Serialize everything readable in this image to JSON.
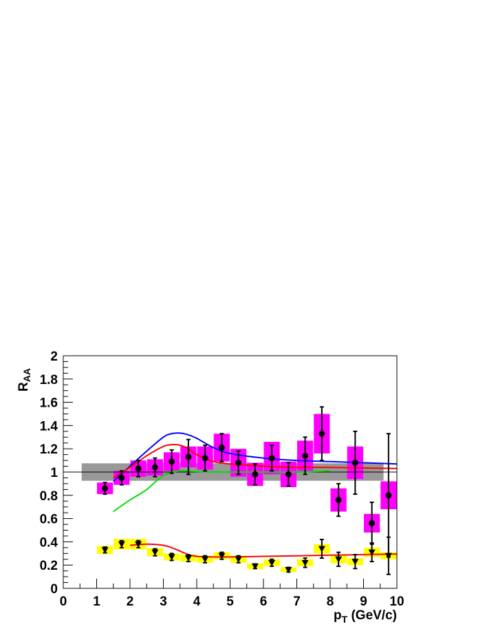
{
  "chart_data": {
    "type": "scatter",
    "title": "",
    "xlabel": "p",
    "xlabel_sub": "T",
    "xlabel_unit": " (GeV/c)",
    "ylabel": "R",
    "ylabel_sub": "AA",
    "xlim": [
      0,
      10
    ],
    "ylim": [
      0,
      2
    ],
    "x_ticks": [
      "0",
      "1",
      "2",
      "3",
      "4",
      "5",
      "6",
      "7",
      "8",
      "9",
      "10"
    ],
    "y_ticks": [
      "0",
      "0.2",
      "0.4",
      "0.6",
      "0.8",
      "1",
      "1.2",
      "1.4",
      "1.6",
      "1.8",
      "2"
    ],
    "grid": false,
    "reference_line": 1,
    "normalization_band": {
      "x": [
        0.55,
        9.6
      ],
      "y": [
        0.925,
        1.075
      ],
      "color": "#999999"
    },
    "series": [
      {
        "marker": "circle",
        "color": "#000000",
        "syst_color": "#ff00ff",
        "points": [
          {
            "x": 1.25,
            "y": 0.86,
            "err": 0.05,
            "syst": 0.05
          },
          {
            "x": 1.75,
            "y": 0.95,
            "err": 0.06,
            "syst": 0.06
          },
          {
            "x": 2.25,
            "y": 1.03,
            "err": 0.07,
            "syst": 0.07
          },
          {
            "x": 2.75,
            "y": 1.04,
            "err": 0.08,
            "syst": 0.07
          },
          {
            "x": 3.25,
            "y": 1.09,
            "err": 0.1,
            "syst": 0.08
          },
          {
            "x": 3.75,
            "y": 1.13,
            "err": 0.15,
            "syst": 0.09
          },
          {
            "x": 4.25,
            "y": 1.12,
            "err": 0.11,
            "syst": 0.1
          },
          {
            "x": 4.75,
            "y": 1.21,
            "err": 0.12,
            "syst": 0.12
          },
          {
            "x": 5.25,
            "y": 1.08,
            "err": 0.1,
            "syst": 0.12
          },
          {
            "x": 5.75,
            "y": 0.98,
            "err": 0.09,
            "syst": 0.1
          },
          {
            "x": 6.25,
            "y": 1.12,
            "err": 0.11,
            "syst": 0.14
          },
          {
            "x": 6.75,
            "y": 0.98,
            "err": 0.1,
            "syst": 0.11
          },
          {
            "x": 7.25,
            "y": 1.14,
            "err": 0.16,
            "syst": 0.13
          },
          {
            "x": 7.75,
            "y": 1.33,
            "err": 0.23,
            "syst": 0.17
          },
          {
            "x": 8.25,
            "y": 0.76,
            "err": 0.14,
            "syst": 0.1
          },
          {
            "x": 8.75,
            "y": 1.08,
            "err": 0.27,
            "syst": 0.14
          },
          {
            "x": 9.25,
            "y": 0.56,
            "err": 0.18,
            "syst": 0.08
          },
          {
            "x": 9.75,
            "y": 0.8,
            "err": 0.53,
            "syst": 0.12
          }
        ]
      },
      {
        "marker": "triangle-down",
        "color": "#000000",
        "syst_color": "#ffff00",
        "points": [
          {
            "x": 1.25,
            "y": 0.33,
            "err": 0.025,
            "syst": 0.035
          },
          {
            "x": 1.75,
            "y": 0.38,
            "err": 0.03,
            "syst": 0.045
          },
          {
            "x": 2.25,
            "y": 0.38,
            "err": 0.03,
            "syst": 0.045
          },
          {
            "x": 2.75,
            "y": 0.31,
            "err": 0.03,
            "syst": 0.035
          },
          {
            "x": 3.25,
            "y": 0.27,
            "err": 0.03,
            "syst": 0.03
          },
          {
            "x": 3.75,
            "y": 0.26,
            "err": 0.03,
            "syst": 0.03
          },
          {
            "x": 4.25,
            "y": 0.25,
            "err": 0.03,
            "syst": 0.03
          },
          {
            "x": 4.75,
            "y": 0.28,
            "err": 0.03,
            "syst": 0.03
          },
          {
            "x": 5.25,
            "y": 0.25,
            "err": 0.03,
            "syst": 0.03
          },
          {
            "x": 5.75,
            "y": 0.19,
            "err": 0.02,
            "syst": 0.025
          },
          {
            "x": 6.25,
            "y": 0.22,
            "err": 0.03,
            "syst": 0.03
          },
          {
            "x": 6.75,
            "y": 0.16,
            "err": 0.02,
            "syst": 0.02
          },
          {
            "x": 7.25,
            "y": 0.22,
            "err": 0.04,
            "syst": 0.03
          },
          {
            "x": 7.75,
            "y": 0.34,
            "err": 0.08,
            "syst": 0.04
          },
          {
            "x": 8.25,
            "y": 0.25,
            "err": 0.06,
            "syst": 0.035
          },
          {
            "x": 8.75,
            "y": 0.23,
            "err": 0.06,
            "syst": 0.03
          },
          {
            "x": 9.25,
            "y": 0.31,
            "err": 0.08,
            "syst": 0.04
          },
          {
            "x": 9.75,
            "y": 0.28,
            "err": 0.16,
            "syst": 0.03
          }
        ]
      }
    ],
    "curves": [
      {
        "color": "#0000ff",
        "x": [
          1.5,
          2.0,
          2.5,
          3.0,
          3.25,
          3.5,
          3.75,
          4.0,
          4.5,
          5.0,
          6.0,
          7.0,
          8.0,
          9.0,
          10.0
        ],
        "y": [
          0.92,
          1.05,
          1.18,
          1.3,
          1.33,
          1.335,
          1.32,
          1.29,
          1.21,
          1.16,
          1.12,
          1.1,
          1.09,
          1.08,
          1.07
        ]
      },
      {
        "color": "#ff0000",
        "x": [
          1.5,
          2.0,
          2.5,
          3.0,
          3.25,
          3.5,
          3.75,
          4.0,
          4.5,
          5.0,
          6.0,
          7.0,
          8.0,
          9.0,
          10.0
        ],
        "y": [
          0.95,
          1.04,
          1.14,
          1.22,
          1.235,
          1.23,
          1.2,
          1.15,
          1.09,
          1.07,
          1.05,
          1.04,
          1.04,
          1.035,
          1.03
        ]
      },
      {
        "color": "#00dd00",
        "x": [
          1.5,
          2.0,
          2.5,
          3.0,
          3.5,
          4.0,
          5.0,
          6.0,
          7.0,
          8.0
        ],
        "y": [
          0.66,
          0.76,
          0.85,
          0.97,
          1.01,
          1.005,
          1.0,
          1.0,
          1.0,
          1.01
        ]
      },
      {
        "color": "#ff0000",
        "x": [
          2.0,
          2.5,
          3.0,
          3.25,
          3.5,
          3.75,
          4.0,
          4.5,
          5.0,
          6.0,
          7.0,
          8.0,
          9.0,
          10.0
        ],
        "y": [
          0.37,
          0.38,
          0.37,
          0.35,
          0.32,
          0.29,
          0.275,
          0.27,
          0.27,
          0.275,
          0.28,
          0.285,
          0.29,
          0.295
        ]
      }
    ]
  }
}
